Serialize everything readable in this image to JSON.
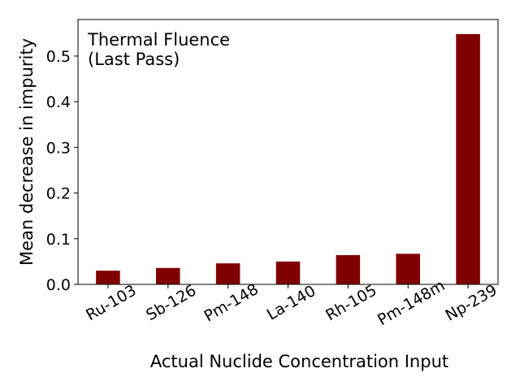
{
  "chart_data": {
    "type": "bar",
    "title": "",
    "annotation": [
      "Thermal Fluence",
      "(Last Pass)"
    ],
    "xlabel": "Actual Nuclide Concentration Input",
    "ylabel": "Mean decrease in impurity",
    "categories": [
      "Ru-103",
      "Sb-126",
      "Pm-148",
      "La-140",
      "Rh-105",
      "Pm-148m",
      "Np-239"
    ],
    "values": [
      0.03,
      0.036,
      0.046,
      0.05,
      0.064,
      0.067,
      0.548
    ],
    "ylim": [
      0,
      0.58
    ],
    "yticks": [
      0.0,
      0.1,
      0.2,
      0.3,
      0.4,
      0.5
    ],
    "ytick_labels": [
      "0.0",
      "0.1",
      "0.2",
      "0.3",
      "0.4",
      "0.5"
    ],
    "bar_color": "#800000",
    "grid": false,
    "legend": "none"
  }
}
